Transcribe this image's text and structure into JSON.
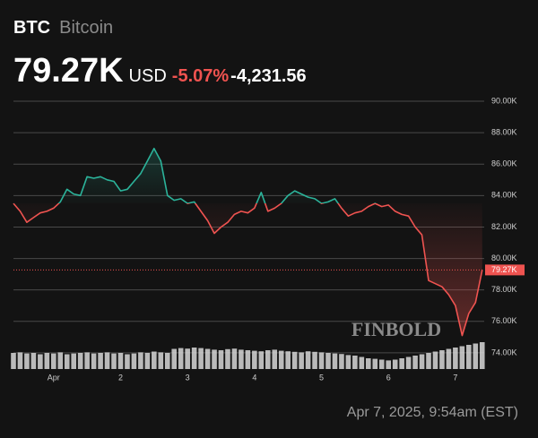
{
  "chart_data": {
    "type": "line",
    "symbol": "BTC",
    "name": "Bitcoin",
    "price": "79.27K",
    "currency": "USD",
    "change_percent": "-5.07%",
    "change": "-4,231.56",
    "timestamp": "Apr 7, 2025, 9:54am (EST)",
    "watermark": "FINBOLD",
    "baseline": 83.5,
    "up_color": "#2bb39a",
    "down_color": "#ef5350",
    "last_value": 79.27,
    "last_label": "79.27K",
    "x": [
      0.4,
      0.5,
      0.6,
      0.7,
      0.8,
      0.9,
      1.0,
      1.1,
      1.2,
      1.3,
      1.4,
      1.5,
      1.6,
      1.7,
      1.8,
      1.9,
      2.0,
      2.1,
      2.2,
      2.3,
      2.4,
      2.5,
      2.6,
      2.7,
      2.8,
      2.9,
      3.0,
      3.1,
      3.2,
      3.3,
      3.4,
      3.5,
      3.6,
      3.7,
      3.8,
      3.9,
      4.0,
      4.1,
      4.2,
      4.3,
      4.4,
      4.5,
      4.6,
      4.7,
      4.8,
      4.9,
      5.0,
      5.1,
      5.2,
      5.3,
      5.4,
      5.5,
      5.6,
      5.7,
      5.8,
      5.9,
      6.0,
      6.1,
      6.2,
      6.3,
      6.4,
      6.5,
      6.6,
      6.7,
      6.8,
      6.9,
      7.0,
      7.1,
      7.2,
      7.3,
      7.4
    ],
    "values": [
      83.5,
      83.0,
      82.3,
      82.6,
      82.9,
      83.0,
      83.2,
      83.6,
      84.4,
      84.1,
      84.0,
      85.2,
      85.1,
      85.2,
      85.0,
      84.9,
      84.3,
      84.4,
      84.9,
      85.4,
      86.2,
      87.0,
      86.2,
      84.0,
      83.7,
      83.8,
      83.5,
      83.6,
      83.0,
      82.4,
      81.6,
      82.0,
      82.3,
      82.8,
      83.0,
      82.9,
      83.2,
      84.2,
      83.0,
      83.2,
      83.5,
      84.0,
      84.3,
      84.1,
      83.9,
      83.8,
      83.5,
      83.6,
      83.8,
      83.2,
      82.7,
      82.9,
      83.0,
      83.3,
      83.5,
      83.3,
      83.4,
      83.0,
      82.8,
      82.7,
      82.0,
      81.5,
      78.6,
      78.4,
      78.2,
      77.7,
      77.0,
      75.1,
      76.5,
      77.2,
      79.27
    ],
    "volume": [
      60,
      62,
      58,
      60,
      55,
      60,
      58,
      62,
      55,
      58,
      60,
      62,
      58,
      60,
      62,
      58,
      60,
      55,
      58,
      62,
      60,
      65,
      62,
      60,
      75,
      78,
      76,
      80,
      78,
      75,
      72,
      70,
      74,
      76,
      72,
      70,
      68,
      66,
      70,
      72,
      68,
      66,
      64,
      62,
      66,
      64,
      62,
      60,
      58,
      56,
      52,
      50,
      45,
      40,
      38,
      35,
      32,
      35,
      40,
      45,
      50,
      55,
      60,
      65,
      70,
      75,
      80,
      85,
      90,
      95,
      100
    ],
    "xlim": [
      0.4,
      7.43
    ],
    "xticks": [
      {
        "value": 1,
        "label": "Apr"
      },
      2,
      3,
      4,
      5,
      6,
      7
    ],
    "ylim": [
      72.97,
      90.74
    ],
    "yticks": [
      {
        "value": 90,
        "label": "90.00K"
      },
      {
        "value": 88,
        "label": "88.00K"
      },
      {
        "value": 86,
        "label": "86.00K"
      },
      {
        "value": 84,
        "label": "84.00K"
      },
      {
        "value": 82,
        "label": "82.00K"
      },
      {
        "value": 80,
        "label": "80.00K"
      },
      {
        "value": 78,
        "label": "78.00K"
      },
      {
        "value": 76,
        "label": "76.00K"
      },
      {
        "value": 74,
        "label": "74.00K"
      }
    ],
    "grid": true
  }
}
